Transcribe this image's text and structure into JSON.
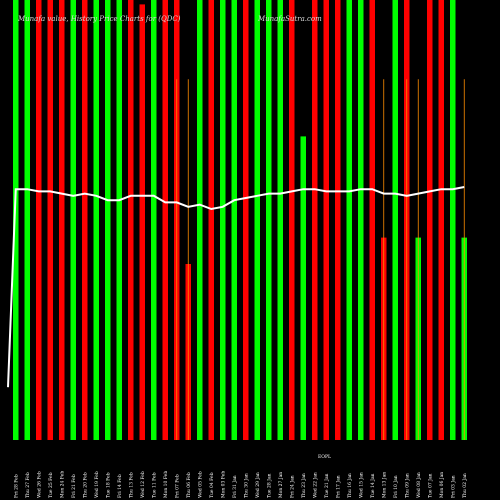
{
  "chart_data": {
    "type": "bar",
    "title": "Munafa value, History Price Charts for (QDC)",
    "subtitle": "MunafaSutra.com",
    "xlabel": "",
    "ylabel": "",
    "ylim": [
      0,
      100
    ],
    "grid": false,
    "legend": "none",
    "colors": {
      "up": "#00ff00",
      "down": "#ff0000",
      "line": "#ffffff",
      "background": "#000000",
      "wick": "#ff8c00"
    },
    "categories": [
      "Fri 28 Feb",
      "Thu 27 Feb",
      "Wed 26 Feb",
      "Tue 25 Feb",
      "Mon 24 Feb",
      "Fri 21 Feb",
      "Thu 20 Feb",
      "Wed 19 Feb",
      "Tue 18 Feb",
      "Fri 14 Feb",
      "Thu 13 Feb",
      "Wed 12 Feb",
      "Tue 11 Feb",
      "Mon 10 Feb",
      "Fri 07 Feb",
      "Thu 06 Feb",
      "Wed 05 Feb",
      "Tue 04 Feb",
      "Mon 03 Feb",
      "Fri 31 Jan",
      "Thu 30 Jan",
      "Wed 29 Jan",
      "Tue 28 Jan",
      "Mon 27 Jan",
      "Fri 24 Jan",
      "Thu 23 Jan",
      "Wed 22 Jan",
      "Tue 21 Jan",
      "Fri 17 Jan",
      "Thu 16 Jan",
      "Wed 15 Jan",
      "Tue 14 Jan",
      "Mon 13 Jan",
      "Fri 10 Jan",
      "Thu 09 Jan",
      "Wed 08 Jan",
      "Tue 07 Jan",
      "Mon 06 Jan",
      "Fri 03 Jan",
      "Thu 02 Jan"
    ],
    "series": [
      {
        "name": "volume",
        "values": [
          100,
          100,
          100,
          100,
          100,
          100,
          100,
          100,
          100,
          100,
          100,
          99,
          100,
          100,
          100,
          40,
          100,
          100,
          100,
          100,
          100,
          100,
          100,
          100,
          100,
          69,
          100,
          100,
          100,
          100,
          100,
          100,
          46,
          100,
          100,
          46,
          100,
          100,
          100,
          46
        ],
        "direction": [
          "up",
          "up",
          "down",
          "down",
          "down",
          "up",
          "down",
          "up",
          "up",
          "up",
          "down",
          "down",
          "up",
          "down",
          "down",
          "down",
          "up",
          "down",
          "up",
          "up",
          "down",
          "up",
          "up",
          "up",
          "down",
          "up",
          "down",
          "down",
          "down",
          "up",
          "up",
          "down",
          "down",
          "up",
          "down",
          "up",
          "down",
          "down",
          "up",
          "up"
        ],
        "wick": [
          null,
          null,
          null,
          null,
          null,
          null,
          null,
          null,
          null,
          null,
          null,
          null,
          null,
          null,
          82,
          82,
          null,
          null,
          null,
          null,
          null,
          null,
          null,
          null,
          null,
          null,
          null,
          null,
          null,
          null,
          null,
          null,
          82,
          null,
          82,
          82,
          null,
          null,
          null,
          82
        ]
      },
      {
        "name": "price",
        "values": [
          57,
          57,
          56.5,
          56.5,
          56,
          55.5,
          56,
          55.5,
          54.5,
          54.5,
          55.5,
          55.5,
          55.5,
          54,
          54,
          53,
          53.5,
          52.5,
          53,
          54.5,
          55,
          55.5,
          56,
          56,
          56.5,
          57,
          57,
          56.5,
          56.5,
          56.5,
          57,
          57,
          56,
          56,
          55.5,
          56,
          56.5,
          57,
          57,
          57.5
        ]
      }
    ],
    "x_extra_labels": [
      "EOPL"
    ]
  }
}
